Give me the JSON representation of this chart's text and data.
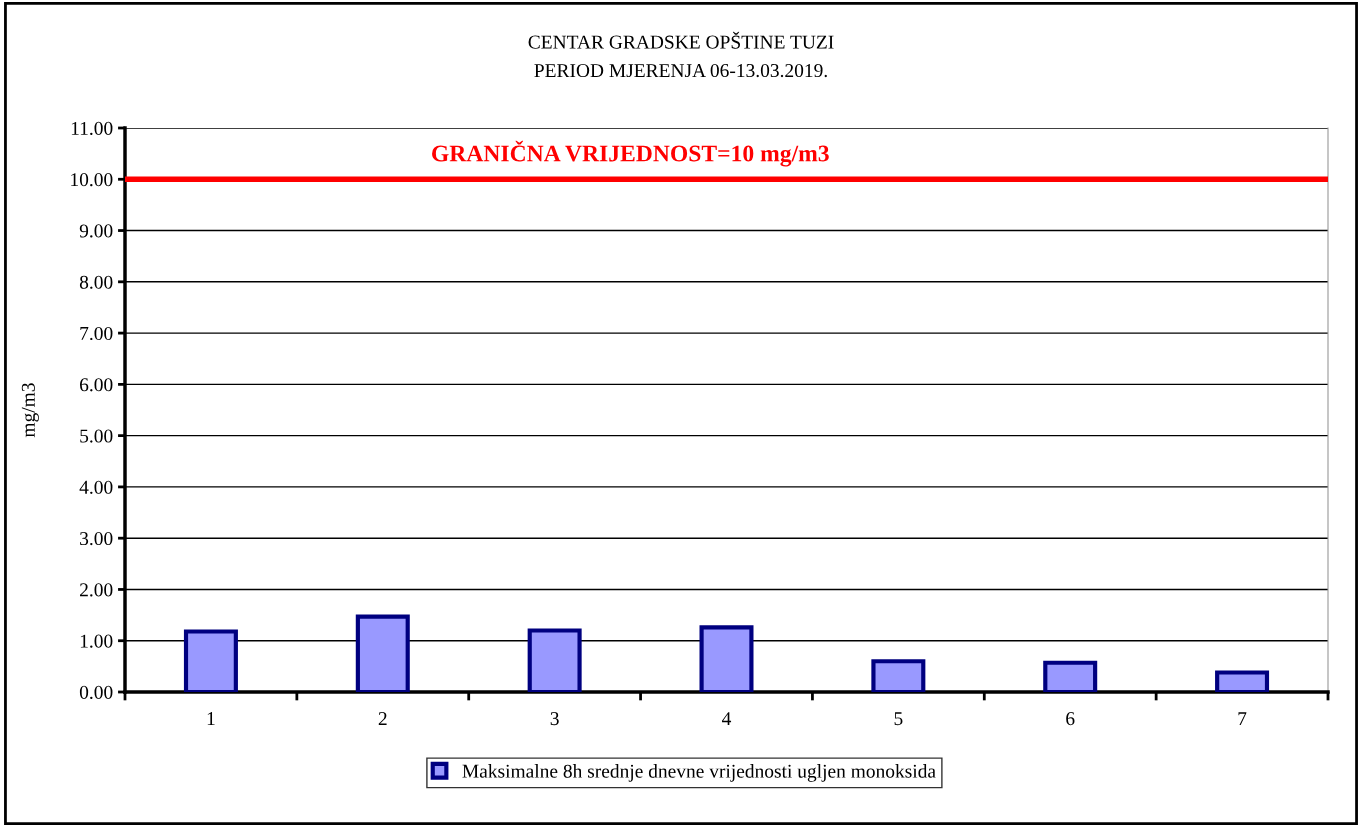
{
  "chart_data": {
    "type": "bar",
    "title": "CENTAR GRADSKE OPŠTINE TUZI\nPERIOD MJERENJA 06-13.03.2019.",
    "ylabel": "mg/m3",
    "categories": [
      "1",
      "2",
      "3",
      "4",
      "5",
      "6",
      "7"
    ],
    "series": [
      {
        "name": "Maksimalne 8h srednje dnevne vrijednosti ugljen monoksida",
        "color": "#9999ff",
        "values": [
          1.18,
          1.47,
          1.2,
          1.26,
          0.6,
          0.57,
          0.38
        ]
      }
    ],
    "ylim": [
      0,
      11
    ],
    "yticks": [
      {
        "value": 0,
        "label": "0.00"
      },
      {
        "value": 1,
        "label": "1.00"
      },
      {
        "value": 2,
        "label": "2.00"
      },
      {
        "value": 3,
        "label": "3.00"
      },
      {
        "value": 4,
        "label": "4.00"
      },
      {
        "value": 5,
        "label": "5.00"
      },
      {
        "value": 6,
        "label": "6.00"
      },
      {
        "value": 7,
        "label": "7.00"
      },
      {
        "value": 8,
        "label": "8.00"
      },
      {
        "value": 9,
        "label": "9.00"
      },
      {
        "value": 10,
        "label": "10.00"
      },
      {
        "value": 11,
        "label": "11.00"
      }
    ],
    "ref_lines": [
      {
        "axis": "y",
        "value": 10,
        "label": "GRANIČNA VRIJEDNOST=10 mg/m3",
        "color": "#ff0000"
      }
    ],
    "grid": "y",
    "legend": "bottom"
  }
}
